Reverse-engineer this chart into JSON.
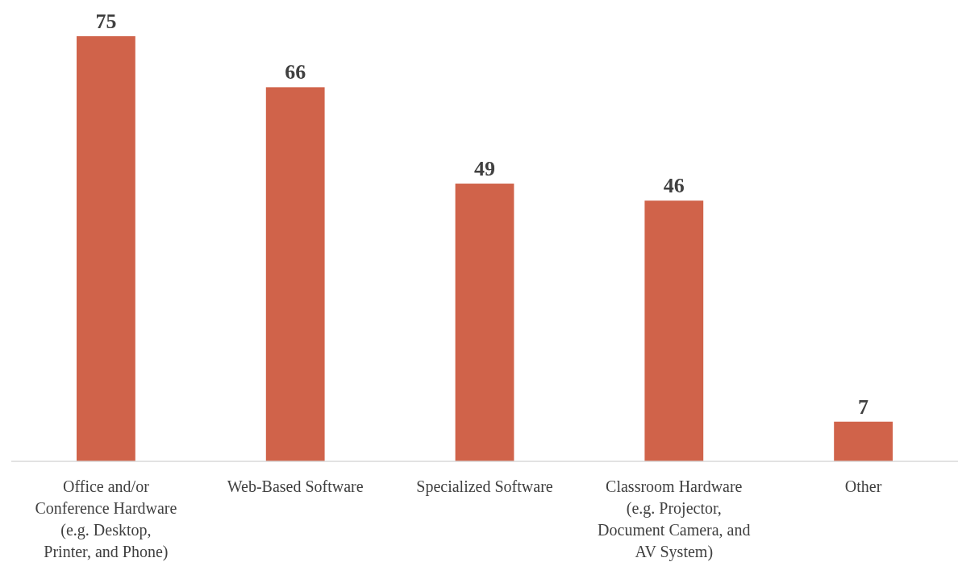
{
  "chart_data": {
    "type": "bar",
    "categories": [
      "Office and/or Conference Hardware (e.g. Desktop, Printer, and Phone)",
      "Web-Based Software",
      "Specialized Software",
      "Classroom Hardware (e.g. Projector, Document Camera, and AV System)",
      "Other"
    ],
    "values": [
      75,
      66,
      49,
      46,
      7
    ],
    "color": "#d0634a",
    "data_labels": true
  }
}
